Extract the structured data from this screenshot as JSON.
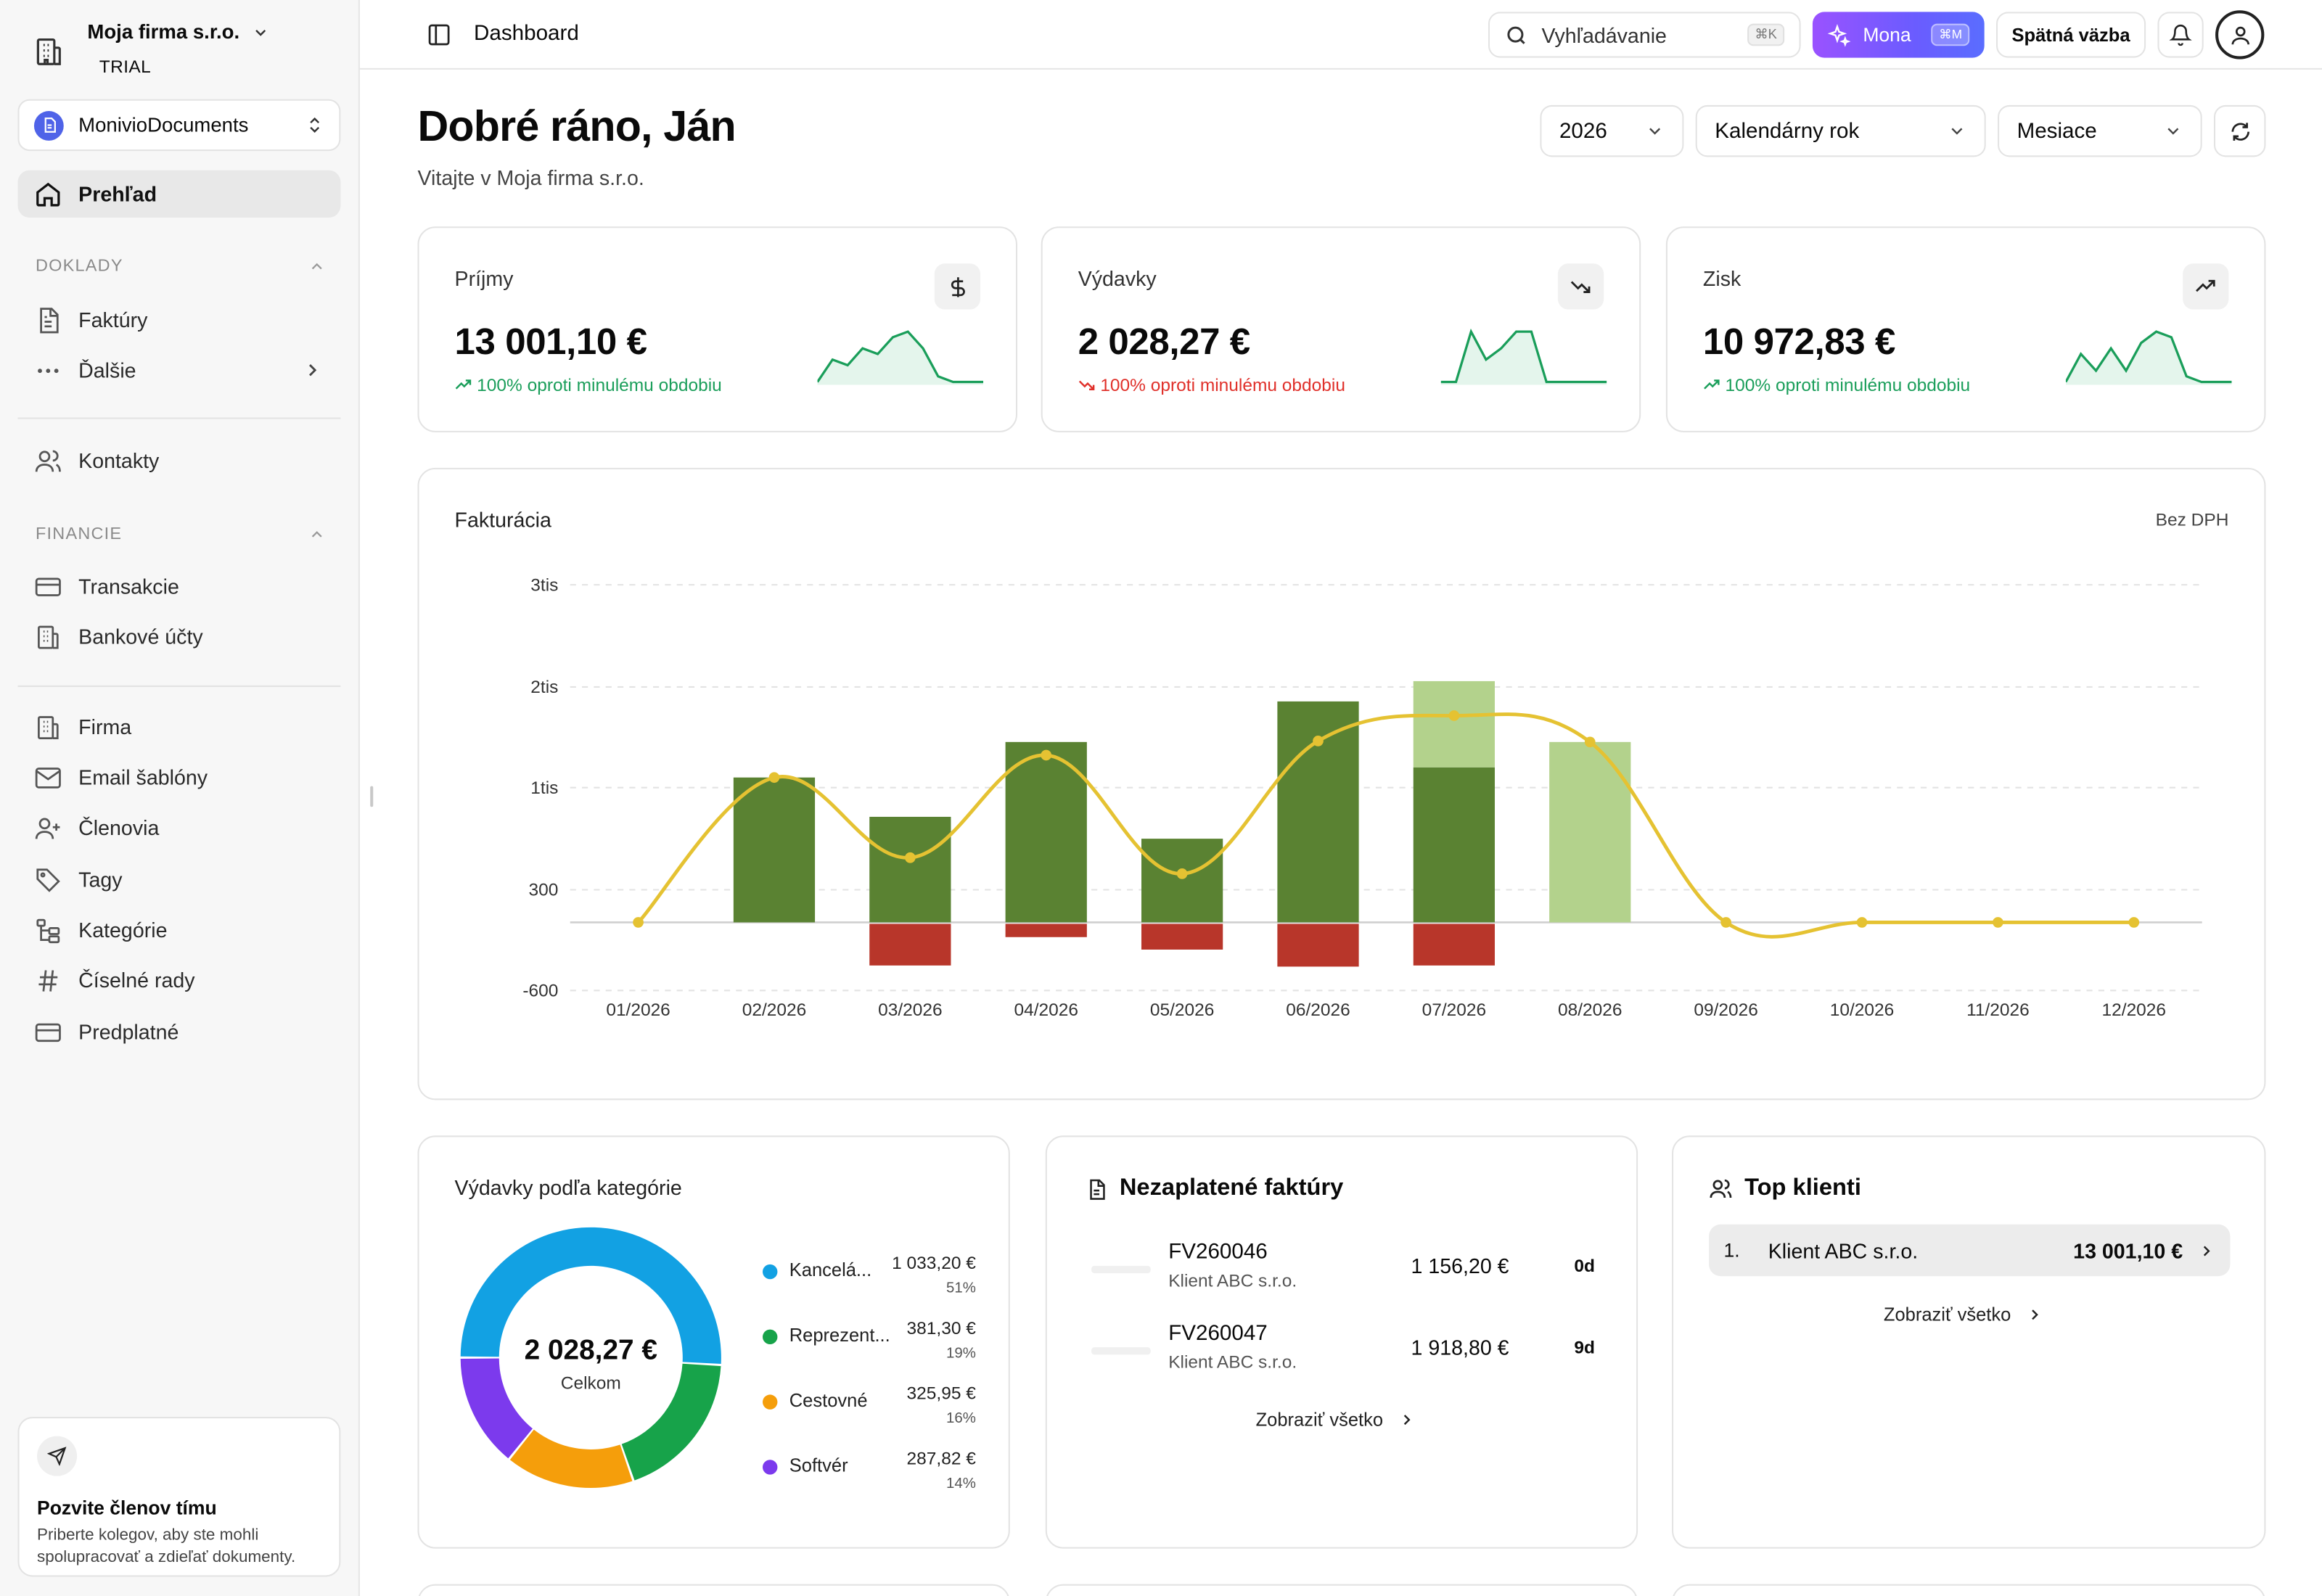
{
  "org": {
    "name": "Moja firma s.r.o.",
    "plan": "TRIAL"
  },
  "workspace": {
    "name": "MonivioDocuments"
  },
  "nav": {
    "overview": "Prehľad",
    "sec_doklady": "DOKLADY",
    "invoices": "Faktúry",
    "more": "Ďalšie",
    "contacts": "Kontakty",
    "sec_financie": "FINANCIE",
    "transactions": "Transakcie",
    "bank_accounts": "Bankové účty",
    "company": "Firma",
    "email_templates": "Email šablóny",
    "members": "Členovia",
    "tags": "Tagy",
    "categories": "Kategórie",
    "number_series": "Číselné rady",
    "subscription": "Predplatné"
  },
  "invite": {
    "title": "Pozvite členov tímu",
    "desc": "Priberte kolegov, aby ste mohli spolupracovať a zdieľať dokumenty."
  },
  "topbar": {
    "page": "Dashboard",
    "search_placeholder": "Vyhľadávanie",
    "search_kbd": "⌘K",
    "mona": "Mona",
    "mona_kbd": "⌘M",
    "feedback": "Spätná väzba"
  },
  "header": {
    "greeting": "Dobré ráno, Ján",
    "subtitle": "Vitajte v Moja firma s.r.o.",
    "year": "2026",
    "period_type": "Kalendárny rok",
    "granularity": "Mesiace"
  },
  "kpis": [
    {
      "label": "Príjmy",
      "value": "13 001,10 €",
      "delta": "100% oproti minulému obdobiu",
      "trend": "up",
      "icon": "dollar-icon",
      "spark": [
        0,
        4,
        3,
        6,
        5,
        8,
        9,
        6,
        1,
        0,
        0,
        0
      ]
    },
    {
      "label": "Výdavky",
      "value": "2 028,27 €",
      "delta": "100% oproti minulému obdobiu",
      "trend": "down",
      "icon": "trending-down-icon",
      "spark": [
        0,
        0,
        9,
        4,
        6,
        9,
        9,
        0,
        0,
        0,
        0,
        0
      ]
    },
    {
      "label": "Zisk",
      "value": "10 972,83 €",
      "delta": "100% oproti minulému obdobiu",
      "trend": "up",
      "icon": "trending-up-icon",
      "spark": [
        0,
        5,
        2,
        6,
        2,
        7,
        9,
        8,
        1,
        0,
        0,
        0
      ]
    }
  ],
  "colors": {
    "up": "#1a9e5a",
    "down": "#e0302a",
    "paid": "#5a8232",
    "pending": "#b3d28c",
    "expense": "#b8362a",
    "line": "#e5c232"
  },
  "chart_title": "Fakturácia",
  "chart_note": "Bez DPH",
  "chart_data": {
    "type": "bar",
    "categories": [
      "01/2026",
      "02/2026",
      "03/2026",
      "04/2026",
      "05/2026",
      "06/2026",
      "07/2026",
      "08/2026",
      "09/2026",
      "10/2026",
      "11/2026",
      "12/2026"
    ],
    "series": [
      {
        "values": [
          0,
          1100,
          800,
          1450,
          650,
          1850,
          1200,
          0,
          0,
          0,
          0,
          0
        ]
      },
      {
        "values": [
          0,
          0,
          0,
          0,
          0,
          0,
          850,
          1450,
          0,
          0,
          0,
          0
        ]
      },
      {
        "values": [
          0,
          0,
          -380,
          -130,
          -240,
          -390,
          -380,
          0,
          0,
          0,
          0,
          0
        ]
      },
      {
        "values": [
          0,
          1100,
          520,
          1320,
          410,
          1460,
          1710,
          1450,
          0,
          0,
          0,
          0
        ]
      }
    ],
    "yticks": [
      "3tis",
      "2tis",
      "1tis",
      "300",
      "-600"
    ],
    "ylim": [
      -600,
      3000
    ],
    "grid": true
  },
  "expenses_by_category": {
    "title": "Výdavky podľa kategórie",
    "total": "2 028,27 €",
    "total_label": "Celkom",
    "items": [
      {
        "name": "Kancelá...",
        "amount": "1 033,20 €",
        "pct": "51%",
        "share": 0.509,
        "color": "#12a1e3"
      },
      {
        "name": "Reprezent...",
        "amount": "381,30 €",
        "pct": "19%",
        "share": 0.188,
        "color": "#17a34a"
      },
      {
        "name": "Cestovné",
        "amount": "325,95 €",
        "pct": "16%",
        "share": 0.161,
        "color": "#f59e0b"
      },
      {
        "name": "Softvér",
        "amount": "287,82 €",
        "pct": "14%",
        "share": 0.142,
        "color": "#7c3aed"
      }
    ]
  },
  "unpaid": {
    "title": "Nezaplatené faktúry",
    "rows": [
      {
        "number": "FV260046",
        "client": "Klient ABC s.r.o.",
        "amount": "1 156,20 €",
        "days": "0d"
      },
      {
        "number": "FV260047",
        "client": "Klient ABC s.r.o.",
        "amount": "1 918,80 €",
        "days": "9d"
      }
    ],
    "show_all": "Zobraziť všetko"
  },
  "top_clients": {
    "title": "Top klienti",
    "rows": [
      {
        "rank": "1.",
        "name": "Klient ABC s.r.o.",
        "amount": "13 001,10 €"
      }
    ],
    "show_all": "Zobraziť všetko"
  }
}
